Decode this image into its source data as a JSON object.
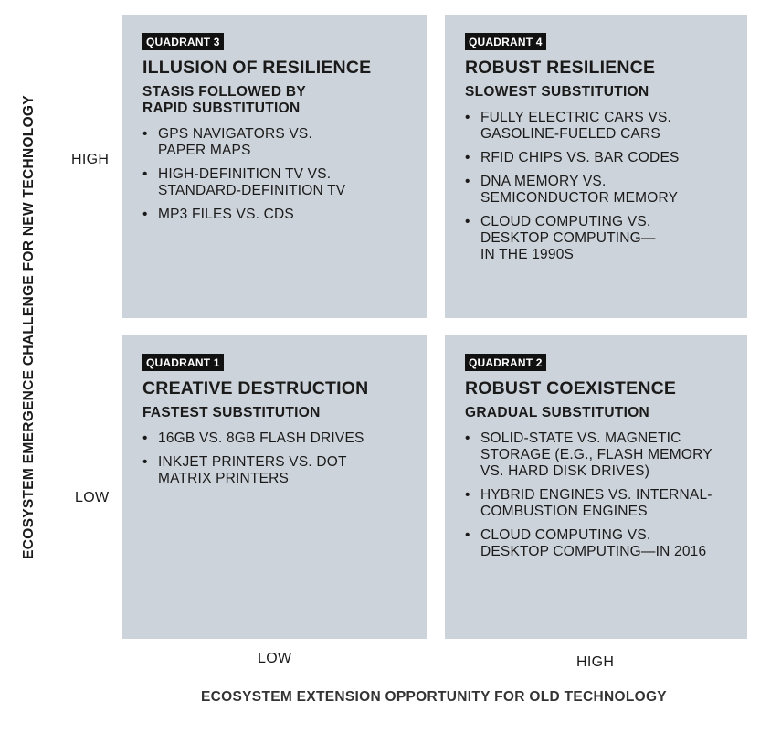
{
  "axes": {
    "y_label": "ECOSYSTEM EMERGENCE CHALLENGE FOR NEW TECHNOLOGY",
    "x_label": "ECOSYSTEM EXTENSION OPPORTUNITY FOR OLD TECHNOLOGY",
    "y_high": "HIGH",
    "y_low": "LOW",
    "x_low": "LOW",
    "x_high": "HIGH"
  },
  "quadrants": {
    "q3": {
      "tag": "QUADRANT 3",
      "title": "ILLUSION OF RESILIENCE",
      "subtitle": "STASIS FOLLOWED BY\nRAPID SUBSTITUTION",
      "items": [
        "GPS NAVIGATORS VS.\nPAPER MAPS",
        "HIGH-DEFINITION TV VS.\nSTANDARD-DEFINITION TV",
        "MP3 FILES VS. CDS"
      ]
    },
    "q4": {
      "tag": "QUADRANT 4",
      "title": "ROBUST RESILIENCE",
      "subtitle": "SLOWEST SUBSTITUTION",
      "items": [
        "FULLY ELECTRIC CARS VS.\nGASOLINE-FUELED CARS",
        "RFID CHIPS VS. BAR CODES",
        "DNA MEMORY VS.\nSEMICONDUCTOR MEMORY",
        "CLOUD COMPUTING VS.\nDESKTOP COMPUTING—\nIN THE 1990S"
      ]
    },
    "q1": {
      "tag": "QUADRANT 1",
      "title": "CREATIVE DESTRUCTION",
      "subtitle": "FASTEST SUBSTITUTION",
      "items": [
        "16GB VS. 8GB FLASH DRIVES",
        "INKJET PRINTERS VS. DOT\nMATRIX PRINTERS"
      ]
    },
    "q2": {
      "tag": "QUADRANT 2",
      "title": "ROBUST COEXISTENCE",
      "subtitle": "GRADUAL SUBSTITUTION",
      "items": [
        "SOLID-STATE VS. MAGNETIC\nSTORAGE (E.G., FLASH MEMORY\nVS. HARD DISK DRIVES)",
        "HYBRID ENGINES VS. INTERNAL-\nCOMBUSTION ENGINES",
        "CLOUD COMPUTING VS.\nDESKTOP COMPUTING—IN 2016"
      ]
    }
  }
}
